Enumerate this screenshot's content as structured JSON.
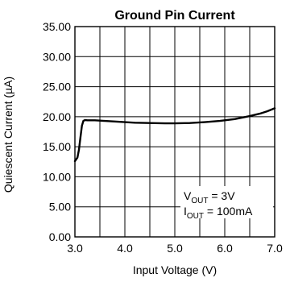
{
  "chart_data": {
    "type": "line",
    "title": "Ground Pin Current",
    "xlabel": "Input Voltage (V)",
    "ylabel": "Quiescent Current (µA)",
    "xlim": [
      3.0,
      7.0
    ],
    "ylim": [
      0.0,
      35.0
    ],
    "x_ticks": [
      3.0,
      4.0,
      5.0,
      6.0,
      7.0
    ],
    "x_tick_labels": [
      "3.0",
      "4.0",
      "5.0",
      "6.0",
      "7.0"
    ],
    "y_ticks": [
      0,
      5,
      10,
      15,
      20,
      25,
      30,
      35
    ],
    "y_tick_labels": [
      "0.00",
      "5.00",
      "10.00",
      "15.00",
      "20.00",
      "25.00",
      "30.00",
      "35.00"
    ],
    "grid": true,
    "line_color": "#000000",
    "series": [
      {
        "x": [
          3.0,
          3.05,
          3.08,
          3.11,
          3.14,
          3.17,
          3.2,
          3.25,
          3.4,
          3.6,
          3.8,
          4.0,
          4.2,
          4.5,
          4.8,
          5.0,
          5.3,
          5.6,
          5.9,
          6.2,
          6.5,
          6.7,
          6.85,
          7.0
        ],
        "y": [
          12.6,
          13.2,
          14.5,
          16.5,
          18.5,
          19.3,
          19.45,
          19.4,
          19.4,
          19.3,
          19.2,
          19.1,
          19.0,
          18.95,
          18.9,
          18.9,
          18.95,
          19.1,
          19.3,
          19.6,
          20.1,
          20.5,
          20.9,
          21.4
        ]
      }
    ],
    "annotation": {
      "line1": {
        "main": "V",
        "sub": "OUT",
        "rest": " = 3V"
      },
      "line2": {
        "main": "I",
        "sub": "OUT",
        "rest": " = 100mA"
      }
    }
  }
}
